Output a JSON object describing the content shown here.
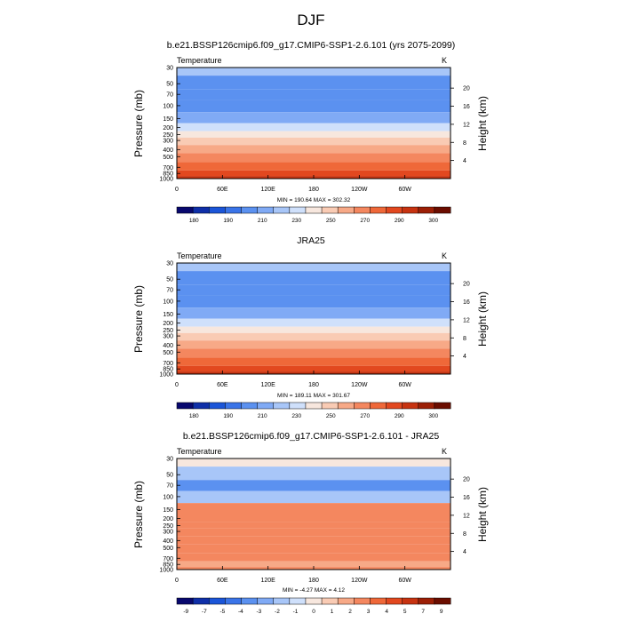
{
  "figure": {
    "title": "DJF"
  },
  "chart_data": [
    {
      "type": "heatmap",
      "title": "b.e21.BSSP126cmip6.f09_g17.CMIP6-SSP1-2.6.101 (yrs 2075-2099)",
      "variable": "Temperature",
      "units": "K",
      "ylabel": "Pressure (mb)",
      "y2label": "Height (km)",
      "x_tick_labels": [
        "0",
        "60E",
        "120E",
        "180",
        "120W",
        "60W"
      ],
      "y_tick_labels": [
        "30",
        "50",
        "70",
        "100",
        "150",
        "200",
        "250",
        "300",
        "400",
        "500",
        "700",
        "850",
        "1000"
      ],
      "y2_tick_labels": [
        "20",
        "16",
        "12",
        "8",
        "4"
      ],
      "stats_text": "MIN = 190.64   MAX = 302.32",
      "colorbar_labels": [
        "180",
        "190",
        "210",
        "230",
        "250",
        "270",
        "290",
        "300"
      ],
      "colorbar_colors": [
        "#08086e",
        "#0f2fa8",
        "#1b55d8",
        "#3a74e8",
        "#5b91f0",
        "#80aaf5",
        "#a8c6f8",
        "#cfe0fb",
        "#f7e7de",
        "#f9cbb4",
        "#f7a987",
        "#f4875f",
        "#ef6839",
        "#e2481f",
        "#c73311",
        "#9c1f06",
        "#6b0d00"
      ],
      "min": 190.64,
      "max": 302.32,
      "profile_pressure_mb": [
        30,
        50,
        70,
        100,
        150,
        200,
        250,
        300,
        400,
        500,
        700,
        850,
        1000
      ],
      "profile_bin": [
        6,
        4,
        4,
        4,
        5,
        7,
        8,
        9,
        10,
        11,
        12,
        13,
        14
      ]
    },
    {
      "type": "heatmap",
      "title": "JRA25",
      "variable": "Temperature",
      "units": "K",
      "ylabel": "Pressure (mb)",
      "y2label": "Height (km)",
      "x_tick_labels": [
        "0",
        "60E",
        "120E",
        "180",
        "120W",
        "60W"
      ],
      "y_tick_labels": [
        "30",
        "50",
        "70",
        "100",
        "150",
        "200",
        "250",
        "300",
        "400",
        "500",
        "700",
        "850",
        "1000"
      ],
      "y2_tick_labels": [
        "20",
        "16",
        "12",
        "8",
        "4"
      ],
      "stats_text": "MIN = 189.11   MAX = 301.67",
      "colorbar_labels": [
        "180",
        "190",
        "210",
        "230",
        "250",
        "270",
        "290",
        "300"
      ],
      "colorbar_colors": [
        "#08086e",
        "#0f2fa8",
        "#1b55d8",
        "#3a74e8",
        "#5b91f0",
        "#80aaf5",
        "#a8c6f8",
        "#cfe0fb",
        "#f7e7de",
        "#f9cbb4",
        "#f7a987",
        "#f4875f",
        "#ef6839",
        "#e2481f",
        "#c73311",
        "#9c1f06",
        "#6b0d00"
      ],
      "min": 189.11,
      "max": 301.67,
      "profile_pressure_mb": [
        30,
        50,
        70,
        100,
        150,
        200,
        250,
        300,
        400,
        500,
        700,
        850,
        1000
      ],
      "profile_bin": [
        6,
        4,
        4,
        4,
        5,
        7,
        8,
        9,
        10,
        11,
        12,
        13,
        14
      ]
    },
    {
      "type": "heatmap",
      "title": "b.e21.BSSP126cmip6.f09_g17.CMIP6-SSP1-2.6.101 - JRA25",
      "variable": "Temperature",
      "units": "K",
      "ylabel": "Pressure (mb)",
      "y2label": "Height (km)",
      "x_tick_labels": [
        "0",
        "60E",
        "120E",
        "180",
        "120W",
        "60W"
      ],
      "y_tick_labels": [
        "30",
        "50",
        "70",
        "100",
        "150",
        "200",
        "250",
        "300",
        "400",
        "500",
        "700",
        "850",
        "1000"
      ],
      "y2_tick_labels": [
        "20",
        "16",
        "12",
        "8",
        "4"
      ],
      "stats_text": "MIN = -4.27   MAX = 4.12",
      "colorbar_labels": [
        "-9",
        "-7",
        "-5",
        "-4",
        "-3",
        "-2",
        "-1",
        "0",
        "1",
        "2",
        "3",
        "4",
        "5",
        "7",
        "9"
      ],
      "colorbar_colors": [
        "#08086e",
        "#0f2fa8",
        "#1b55d8",
        "#3a74e8",
        "#5b91f0",
        "#80aaf5",
        "#a8c6f8",
        "#cfe0fb",
        "#f7e7de",
        "#f9cbb4",
        "#f7a987",
        "#f4875f",
        "#ef6839",
        "#e2481f",
        "#c73311",
        "#9c1f06",
        "#6b0d00"
      ],
      "min": -4.27,
      "max": 4.12,
      "profile_pressure_mb": [
        30,
        50,
        70,
        100,
        150,
        200,
        250,
        300,
        400,
        500,
        700,
        850,
        1000
      ],
      "profile_bin": [
        8,
        6,
        4,
        6,
        11,
        11,
        11,
        11,
        11,
        11,
        11,
        10,
        11
      ]
    }
  ]
}
